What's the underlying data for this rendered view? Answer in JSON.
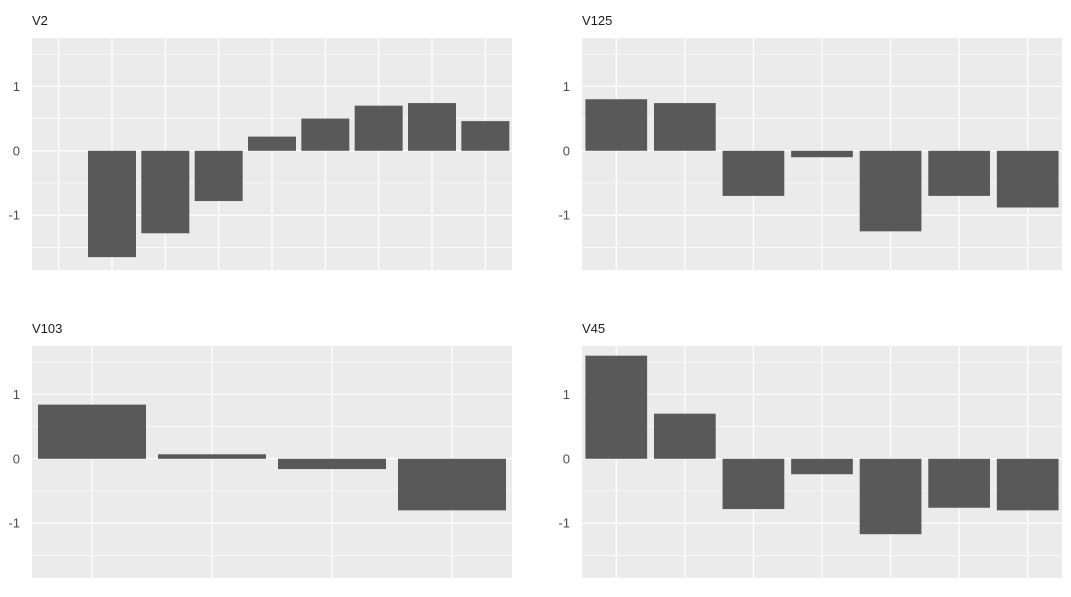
{
  "chart_data": [
    {
      "type": "bar",
      "title": "V2",
      "ylim": [
        -1.85,
        1.75
      ],
      "yticks": [
        -1,
        0,
        1
      ],
      "ytick_labels": [
        "-1",
        "0",
        "1"
      ],
      "grid": true,
      "n_slots": 9,
      "values": [
        null,
        -1.65,
        -1.28,
        -0.78,
        0.22,
        0.5,
        0.7,
        0.74,
        0.46
      ]
    },
    {
      "type": "bar",
      "title": "V125",
      "ylim": [
        -1.85,
        1.75
      ],
      "yticks": [
        -1,
        0,
        1
      ],
      "ytick_labels": [
        "-1",
        "0",
        "1"
      ],
      "grid": true,
      "n_slots": 7,
      "values": [
        0.8,
        0.74,
        -0.7,
        -0.1,
        -1.25,
        -0.7,
        -0.88
      ]
    },
    {
      "type": "bar",
      "title": "V103",
      "ylim": [
        -1.85,
        1.75
      ],
      "yticks": [
        -1,
        0,
        1
      ],
      "ytick_labels": [
        "-1",
        "0",
        "1"
      ],
      "grid": true,
      "n_slots": 4,
      "values": [
        0.84,
        0.07,
        -0.16,
        -0.8
      ]
    },
    {
      "type": "bar",
      "title": "V45",
      "ylim": [
        -1.85,
        1.75
      ],
      "yticks": [
        -1,
        0,
        1
      ],
      "ytick_labels": [
        "-1",
        "0",
        "1"
      ],
      "grid": true,
      "n_slots": 7,
      "values": [
        1.6,
        0.7,
        -0.78,
        -0.24,
        -1.17,
        -0.76,
        -0.8
      ]
    }
  ],
  "colors": {
    "panel_background": "#ebebeb",
    "grid_major": "#ffffff",
    "grid_minor": "#f7f7f7",
    "bar_fill": "#595959",
    "tick_text": "#4d4d4d",
    "title_text": "#1a1a1a"
  }
}
